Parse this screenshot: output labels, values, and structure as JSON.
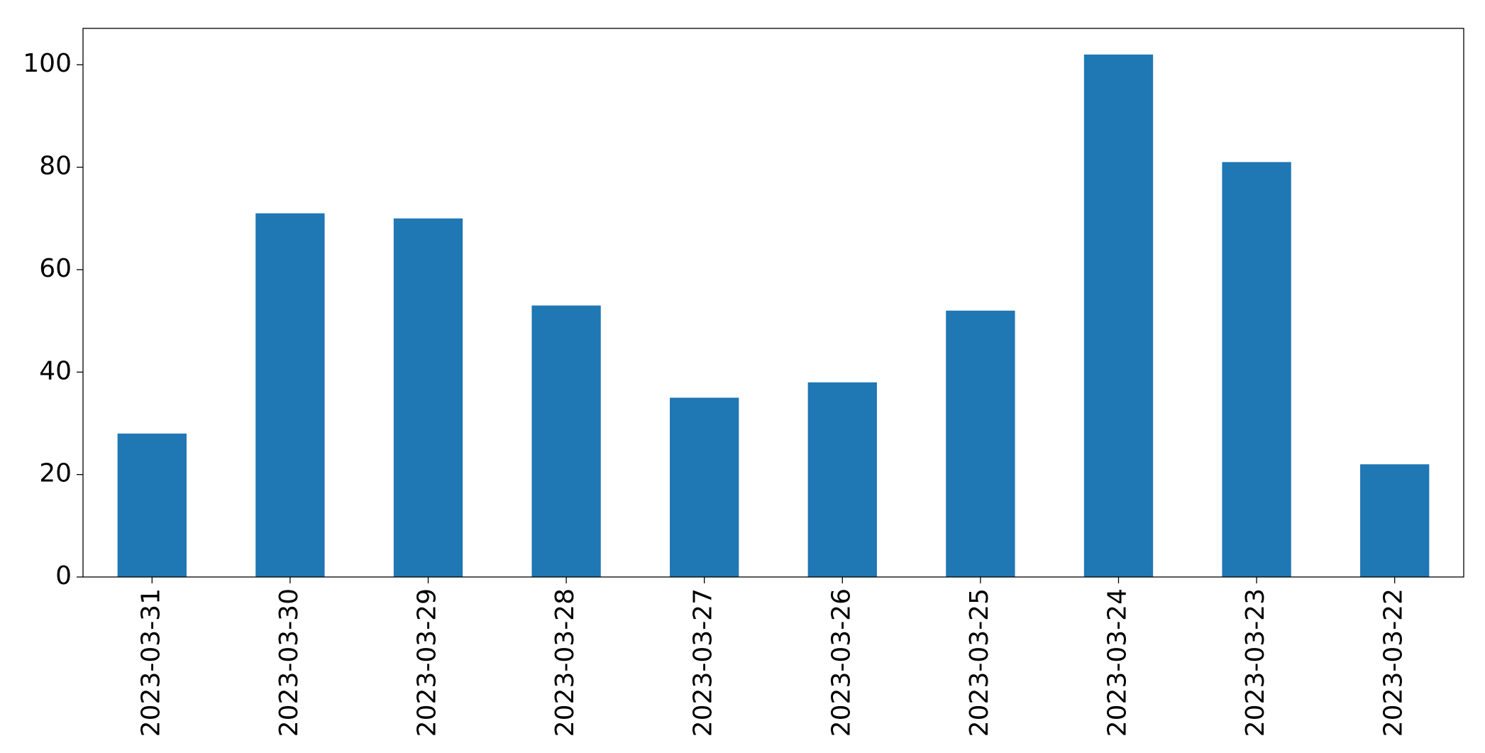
{
  "chart_data": {
    "type": "bar",
    "categories": [
      "2023-03-31",
      "2023-03-30",
      "2023-03-29",
      "2023-03-28",
      "2023-03-27",
      "2023-03-26",
      "2023-03-25",
      "2023-03-24",
      "2023-03-23",
      "2023-03-22"
    ],
    "values": [
      28,
      71,
      70,
      53,
      35,
      38,
      52,
      102,
      81,
      22
    ],
    "color": "#1f77b4",
    "ylim": [
      0,
      107.1
    ],
    "yticks": [
      0,
      20,
      40,
      60,
      80,
      100
    ],
    "grid": false
  }
}
